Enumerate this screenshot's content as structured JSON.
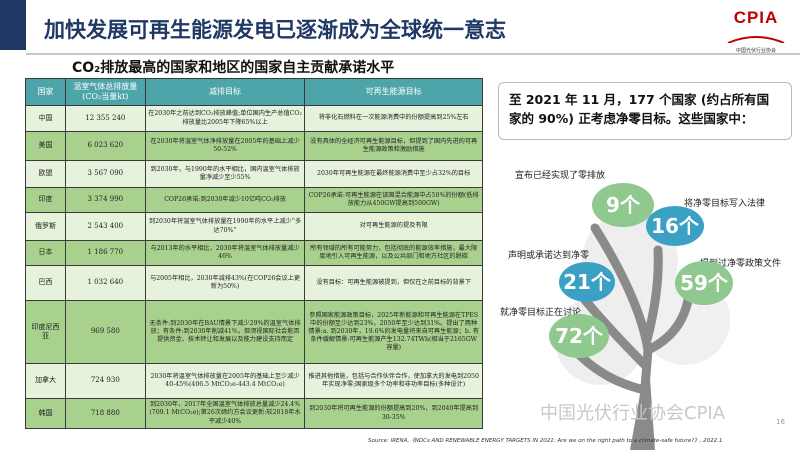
{
  "header": {
    "title": "加快发展可再生能源发电已逐渐成为全球统一意志",
    "logo_text": "CPIA",
    "logo_sub": "中国光伏行业协会"
  },
  "subtitle": "CO₂排放最高的国家和地区的国家自主贡献承诺水平",
  "table": {
    "columns": [
      "国家",
      "温室气体总排放量(CO₂当量kt)",
      "减排目标",
      "可再生能源目标"
    ],
    "rows": [
      [
        "中国",
        "12 355 240",
        "在2030年之前达到CO₂排放峰值;单位国内生产总值CO₂排放量比2005年下降65%以上",
        "将非化石燃料在一次能源消费中的份额提高到25%左右"
      ],
      [
        "美国",
        "6 023 620",
        "在2030年将温室气体净排放量在2005年的基础上减少50-52%",
        "没有具体的全经济可再生能源目标，但提到了国内先进的可再生能源政策和激励措施"
      ],
      [
        "欧盟",
        "3 567 090",
        "到2030年，与1990年的水平相比，国内温室气体排放量净减少至少55%",
        "2030年可再生能源在最终能源消费中至少占32%的目标"
      ],
      [
        "印度",
        "3 374 990",
        "COP26承诺:到2030年减少10亿吨CO₂排放",
        "COP26承诺:可再生能源在该国混合能源中占50%的份额(低排放能力从450GW提高到500GW)"
      ],
      [
        "俄罗斯",
        "2 543 400",
        "到2030年将温室气体排放量在1990年的水平上减少“多达70%”",
        "对可再生能源的提及有限"
      ],
      [
        "日本",
        "1 186 770",
        "与2013年的水平相比，2030年将温室气体排放量减少46%",
        "所有领域的所有可能努力，包括彻底的能源效率措施，最大限度地引入可再生能源，以及公共部门和地方社区的脱碳"
      ],
      [
        "巴西",
        "1 032 640",
        "与2005年相比，2030年减排43%(在COP26会议上更新为50%)",
        "没有目标：可再生能源被提到，但仅在之前目标的背景下"
      ],
      [
        "印度尼西亚",
        "969 580",
        "无条件:到2030年在BAU情景下减少29%的温室气体排放；有条件:到2030年削减41%，但须视国际社会能否提供资金、技术转让和发展以及能力建设支持而定",
        "参照国家能源政策目标，2025年新能源和可再生能源在TPES中的份额至少达到23%，2050年至少达到31%。提出了两种情景:a. 到2030年，19.6%的发电量将来自可再生能源；b. 有条件缓解情景:可再生能源产生132.74TWh(相当于2165GW容量)"
      ],
      [
        "加拿大",
        "724 930",
        "2030年将温室气体排放量在2005年的基础上至少减少40-45%(406.5 MtCO₂e-443.4 MtCO₂e)",
        "推进其他措施，包括与合作伙伴合作，使加拿大的发电到2050年实现净零;国家级多个功率和非功率目标(多种设计)"
      ],
      [
        "韩国",
        "718 880",
        "到2030年，2017年全国温室气体排放总量减少24.4%(709.1 MtCO₂e);第26次缔约方会议更新:较2018年水平减少40%",
        "到2030年将可再生能源的份额提高到20%，到2040年提高到30-35%"
      ]
    ]
  },
  "note": "至 2021 年 11 月，177 个国家 (约占所有国家的 90%) 正考虑净零目标。这些国家中：",
  "tree": [
    {
      "label": "宣布已经实现了零排放",
      "value": "9个",
      "color": "#8fc98f"
    },
    {
      "label": "将净零目标写入法律",
      "value": "16个",
      "color": "#3aa0c4"
    },
    {
      "label": "声明或承诺达到净零",
      "value": "21个",
      "color": "#3aa0c4"
    },
    {
      "label": "提到过净零政策文件",
      "value": "59个",
      "color": "#8fc98f"
    },
    {
      "label": "就净零目标正在讨论",
      "value": "72个",
      "color": "#8fc98f"
    }
  ],
  "watermark": "中国光伏行业协会CPIA",
  "page_number": "16",
  "source": "Source: IRENA,《NDCs AND RENEWABLE ENERGY TARGETS IN 2021: Are we on the right path to a climate-safe future?》, 2022.1"
}
